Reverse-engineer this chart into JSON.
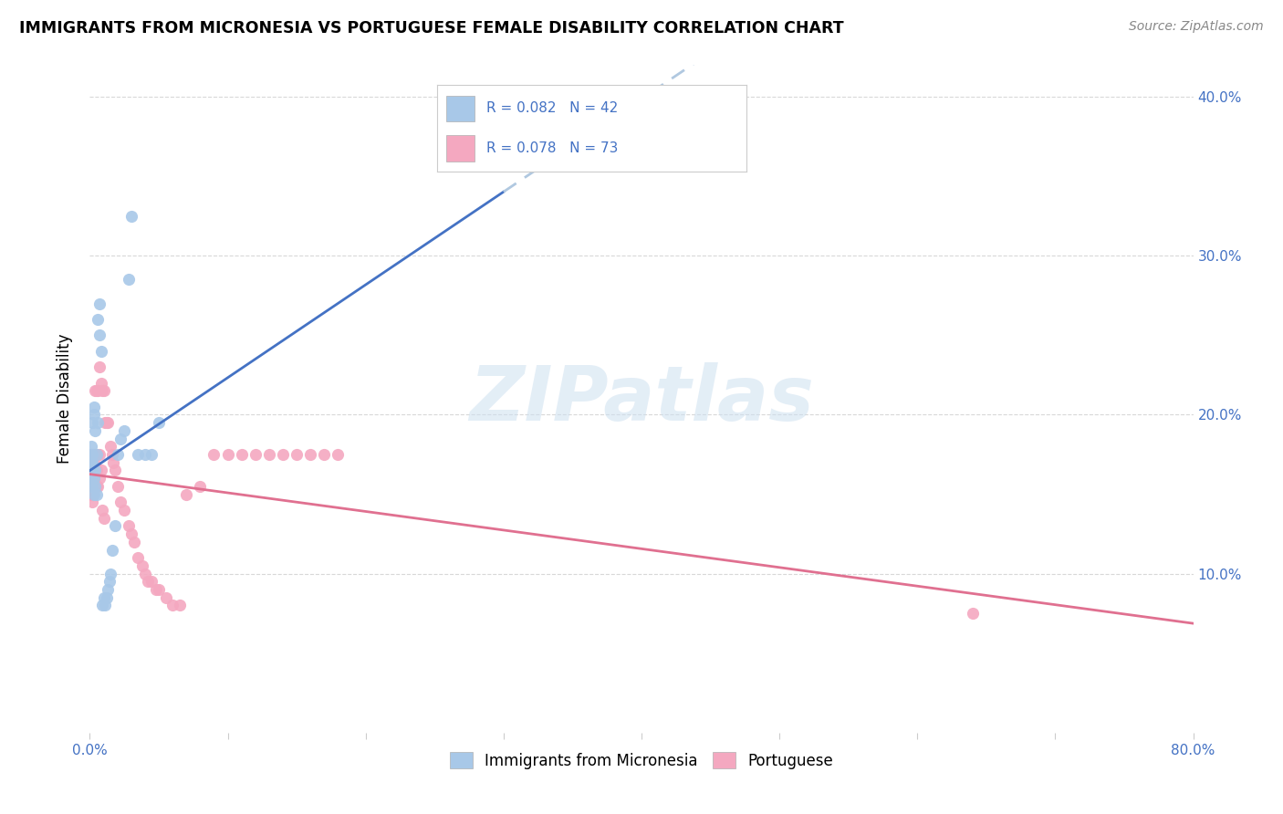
{
  "title": "IMMIGRANTS FROM MICRONESIA VS PORTUGUESE FEMALE DISABILITY CORRELATION CHART",
  "source": "Source: ZipAtlas.com",
  "ylabel": "Female Disability",
  "xlim": [
    0.0,
    0.8
  ],
  "ylim": [
    0.0,
    0.42
  ],
  "yticks": [
    0.1,
    0.2,
    0.3,
    0.4
  ],
  "ytick_labels": [
    "10.0%",
    "20.0%",
    "30.0%",
    "40.0%"
  ],
  "xtick_labels": [
    "0.0%",
    "80.0%"
  ],
  "legend_text1": "R = 0.082   N = 42",
  "legend_text2": "R = 0.078   N = 73",
  "color_blue": "#a8c8e8",
  "color_pink": "#f4a8c0",
  "color_blue_text": "#4472c4",
  "trendline_blue_solid": "#4472c4",
  "trendline_pink_solid": "#e07090",
  "trendline_blue_dashed": "#b0c8e0",
  "background_color": "#ffffff",
  "grid_color": "#d8d8d8",
  "micronesia_x": [
    0.001,
    0.001,
    0.001,
    0.001,
    0.001,
    0.002,
    0.002,
    0.002,
    0.002,
    0.002,
    0.003,
    0.003,
    0.003,
    0.003,
    0.004,
    0.004,
    0.004,
    0.005,
    0.005,
    0.006,
    0.006,
    0.007,
    0.007,
    0.008,
    0.009,
    0.01,
    0.011,
    0.012,
    0.013,
    0.014,
    0.015,
    0.016,
    0.018,
    0.02,
    0.022,
    0.025,
    0.028,
    0.03,
    0.035,
    0.04,
    0.045,
    0.05
  ],
  "micronesia_y": [
    0.16,
    0.165,
    0.17,
    0.175,
    0.18,
    0.155,
    0.165,
    0.17,
    0.175,
    0.195,
    0.15,
    0.16,
    0.2,
    0.205,
    0.155,
    0.165,
    0.19,
    0.15,
    0.175,
    0.195,
    0.26,
    0.25,
    0.27,
    0.24,
    0.08,
    0.085,
    0.08,
    0.085,
    0.09,
    0.095,
    0.1,
    0.115,
    0.13,
    0.175,
    0.185,
    0.19,
    0.285,
    0.325,
    0.175,
    0.175,
    0.175,
    0.195
  ],
  "portuguese_x": [
    0.001,
    0.001,
    0.001,
    0.001,
    0.001,
    0.001,
    0.002,
    0.002,
    0.002,
    0.002,
    0.002,
    0.002,
    0.003,
    0.003,
    0.003,
    0.003,
    0.003,
    0.004,
    0.004,
    0.004,
    0.004,
    0.005,
    0.005,
    0.005,
    0.005,
    0.006,
    0.006,
    0.006,
    0.007,
    0.007,
    0.007,
    0.008,
    0.008,
    0.009,
    0.009,
    0.01,
    0.01,
    0.011,
    0.012,
    0.013,
    0.015,
    0.016,
    0.017,
    0.018,
    0.02,
    0.022,
    0.025,
    0.028,
    0.03,
    0.032,
    0.035,
    0.038,
    0.04,
    0.042,
    0.045,
    0.048,
    0.05,
    0.055,
    0.06,
    0.065,
    0.07,
    0.08,
    0.09,
    0.1,
    0.11,
    0.12,
    0.13,
    0.14,
    0.15,
    0.16,
    0.17,
    0.18,
    0.64
  ],
  "portuguese_y": [
    0.15,
    0.155,
    0.16,
    0.165,
    0.17,
    0.175,
    0.145,
    0.15,
    0.155,
    0.16,
    0.165,
    0.17,
    0.155,
    0.16,
    0.165,
    0.17,
    0.175,
    0.155,
    0.165,
    0.175,
    0.215,
    0.155,
    0.165,
    0.175,
    0.215,
    0.155,
    0.175,
    0.215,
    0.16,
    0.175,
    0.23,
    0.165,
    0.22,
    0.14,
    0.215,
    0.135,
    0.215,
    0.195,
    0.195,
    0.195,
    0.18,
    0.175,
    0.17,
    0.165,
    0.155,
    0.145,
    0.14,
    0.13,
    0.125,
    0.12,
    0.11,
    0.105,
    0.1,
    0.095,
    0.095,
    0.09,
    0.09,
    0.085,
    0.08,
    0.08,
    0.15,
    0.155,
    0.175,
    0.175,
    0.175,
    0.175,
    0.175,
    0.175,
    0.175,
    0.175,
    0.175,
    0.175,
    0.075
  ]
}
